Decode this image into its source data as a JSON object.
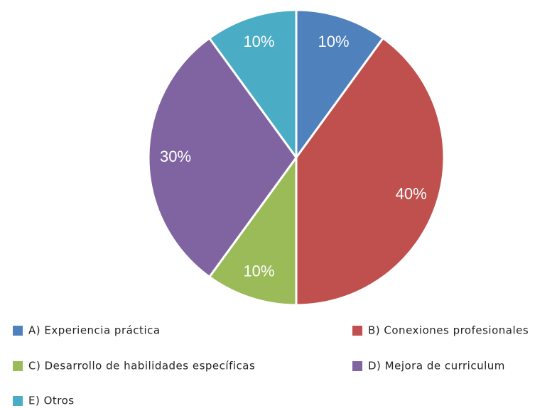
{
  "chart_data": {
    "type": "pie",
    "categories": [
      "A) Experiencia práctica",
      "B) Conexiones profesionales",
      "C) Desarrollo de habilidades específicas",
      "D) Mejora de curriculum",
      "E) Otros"
    ],
    "values": [
      10,
      40,
      10,
      30,
      10
    ],
    "value_labels": [
      "10%",
      "40%",
      "10%",
      "30%",
      "10%"
    ],
    "colors": [
      "#4f81bd",
      "#c0504d",
      "#9bbb59",
      "#8064a2",
      "#4bacc6"
    ],
    "legend": "bottom"
  }
}
